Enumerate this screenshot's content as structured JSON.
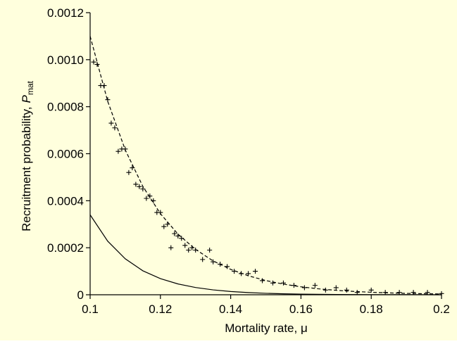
{
  "chart_data": {
    "type": "scatter",
    "xlabel": "Mortality rate, μ",
    "ylabel": "Recruitment probability,",
    "ylabel_symbol": "P",
    "ylabel_subscript": "mat",
    "xlim": [
      0.1,
      0.2
    ],
    "ylim": [
      0,
      0.0012
    ],
    "xticks": [
      0.1,
      0.12,
      0.14,
      0.16,
      0.18,
      0.2
    ],
    "yticks": [
      0,
      0.0002,
      0.0004,
      0.0006,
      0.0008,
      {
        "value": 0.001,
        "label": "0.0010"
      },
      0.0012
    ],
    "background": "#ffffdd",
    "series": [
      {
        "type": "line",
        "style": "dashed",
        "color": "#000000",
        "x": [
          0.1,
          0.105,
          0.11,
          0.115,
          0.12,
          0.125,
          0.13,
          0.135,
          0.14,
          0.145,
          0.15,
          0.155,
          0.16,
          0.165,
          0.17,
          0.175,
          0.18,
          0.185,
          0.19,
          0.195,
          0.2
        ],
        "values": [
          0.0011,
          0.000823,
          0.000616,
          0.000461,
          0.000345,
          0.000258,
          0.000193,
          0.000144,
          0.000108,
          8.08e-05,
          6.05e-05,
          4.52e-05,
          3.38e-05,
          2.53e-05,
          1.89e-05,
          1.42e-05,
          1.06e-05,
          7.9e-06,
          5.9e-06,
          4.4e-06,
          3.3e-06
        ]
      },
      {
        "type": "line",
        "style": "solid",
        "color": "#000000",
        "x": [
          0.1,
          0.105,
          0.11,
          0.115,
          0.12,
          0.125,
          0.13,
          0.135,
          0.14,
          0.145,
          0.15,
          0.155,
          0.16,
          0.165,
          0.17,
          0.175,
          0.18,
          0.185,
          0.19,
          0.195,
          0.2
        ],
        "values": [
          0.00034,
          0.000228,
          0.000153,
          0.000102,
          6.87e-05,
          4.6e-05,
          3.09e-05,
          2.07e-05,
          1.39e-05,
          9.3e-06,
          6.2e-06,
          4.2e-06,
          2.8e-06,
          1.9e-06,
          1.3e-06,
          8e-07,
          6e-07,
          4e-07,
          3e-07,
          2e-07,
          1e-07
        ]
      },
      {
        "type": "points",
        "marker": "plus",
        "color": "#000000",
        "x": [
          0.101,
          0.102,
          0.103,
          0.104,
          0.105,
          0.106,
          0.107,
          0.108,
          0.109,
          0.11,
          0.111,
          0.112,
          0.113,
          0.114,
          0.115,
          0.116,
          0.117,
          0.118,
          0.119,
          0.12,
          0.121,
          0.122,
          0.123,
          0.124,
          0.125,
          0.126,
          0.127,
          0.128,
          0.129,
          0.13,
          0.132,
          0.134,
          0.135,
          0.137,
          0.139,
          0.141,
          0.143,
          0.145,
          0.147,
          0.149,
          0.152,
          0.155,
          0.158,
          0.161,
          0.164,
          0.167,
          0.17,
          0.173,
          0.176,
          0.18,
          0.184,
          0.188,
          0.192,
          0.196,
          0.2
        ],
        "values": [
          0.00099,
          0.00098,
          0.00089,
          0.00089,
          0.00083,
          0.00073,
          0.00071,
          0.00061,
          0.00062,
          0.00062,
          0.00052,
          0.00054,
          0.00047,
          0.00046,
          0.00045,
          0.00041,
          0.00042,
          0.0004,
          0.00035,
          0.00035,
          0.00029,
          0.0003,
          0.0002,
          0.00026,
          0.00025,
          0.00024,
          0.00021,
          0.00019,
          0.0002,
          0.00019,
          0.00015,
          0.00019,
          0.00014,
          0.00013,
          0.00012,
          0.0001,
          9e-05,
          9e-05,
          0.0001,
          6e-05,
          5e-05,
          5e-05,
          4e-05,
          3e-05,
          4e-05,
          2e-05,
          3e-05,
          2e-05,
          1e-05,
          2e-05,
          1e-05,
          1e-05,
          1e-05,
          1e-05,
          5e-06
        ]
      }
    ]
  }
}
